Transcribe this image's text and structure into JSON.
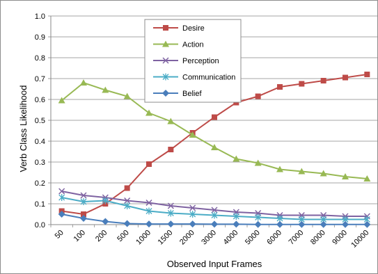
{
  "chart_data": {
    "type": "line",
    "xlabel": "Observed Input Frames",
    "ylabel": "Verb Class Likelihood",
    "categories": [
      "50",
      "100",
      "200",
      "500",
      "1000",
      "1500",
      "2000",
      "3000",
      "4000",
      "5000",
      "6000",
      "7000",
      "8000",
      "9000",
      "10000"
    ],
    "ylim": [
      0,
      1
    ],
    "yticks": [
      "0.0",
      "0.1",
      "0.2",
      "0.3",
      "0.4",
      "0.5",
      "0.6",
      "0.7",
      "0.8",
      "0.9",
      "1.0"
    ],
    "grid": "horizontal",
    "legend_position": "top-center",
    "series": [
      {
        "name": "Desire",
        "color": "#BE4B48",
        "marker": "square",
        "values": [
          0.065,
          0.05,
          0.1,
          0.175,
          0.29,
          0.36,
          0.44,
          0.515,
          0.585,
          0.615,
          0.66,
          0.675,
          0.69,
          0.705,
          0.72
        ]
      },
      {
        "name": "Action",
        "color": "#98B954",
        "marker": "triangle",
        "values": [
          0.595,
          0.68,
          0.645,
          0.615,
          0.535,
          0.495,
          0.43,
          0.37,
          0.315,
          0.295,
          0.265,
          0.255,
          0.245,
          0.23,
          0.22
        ]
      },
      {
        "name": "Perception",
        "color": "#7E62A1",
        "marker": "x",
        "values": [
          0.16,
          0.14,
          0.13,
          0.115,
          0.105,
          0.09,
          0.08,
          0.07,
          0.06,
          0.055,
          0.045,
          0.045,
          0.045,
          0.04,
          0.04
        ]
      },
      {
        "name": "Communication",
        "color": "#4BACC6",
        "marker": "star",
        "values": [
          0.13,
          0.11,
          0.115,
          0.09,
          0.065,
          0.055,
          0.05,
          0.045,
          0.04,
          0.035,
          0.03,
          0.025,
          0.025,
          0.025,
          0.025
        ]
      },
      {
        "name": "Belief",
        "color": "#4A7EBB",
        "marker": "diamond",
        "values": [
          0.05,
          0.03,
          0.015,
          0.005,
          0.003,
          0.003,
          0.003,
          0.002,
          0.002,
          0.001,
          0.001,
          0.001,
          0.001,
          0.001,
          0.001
        ]
      }
    ]
  }
}
